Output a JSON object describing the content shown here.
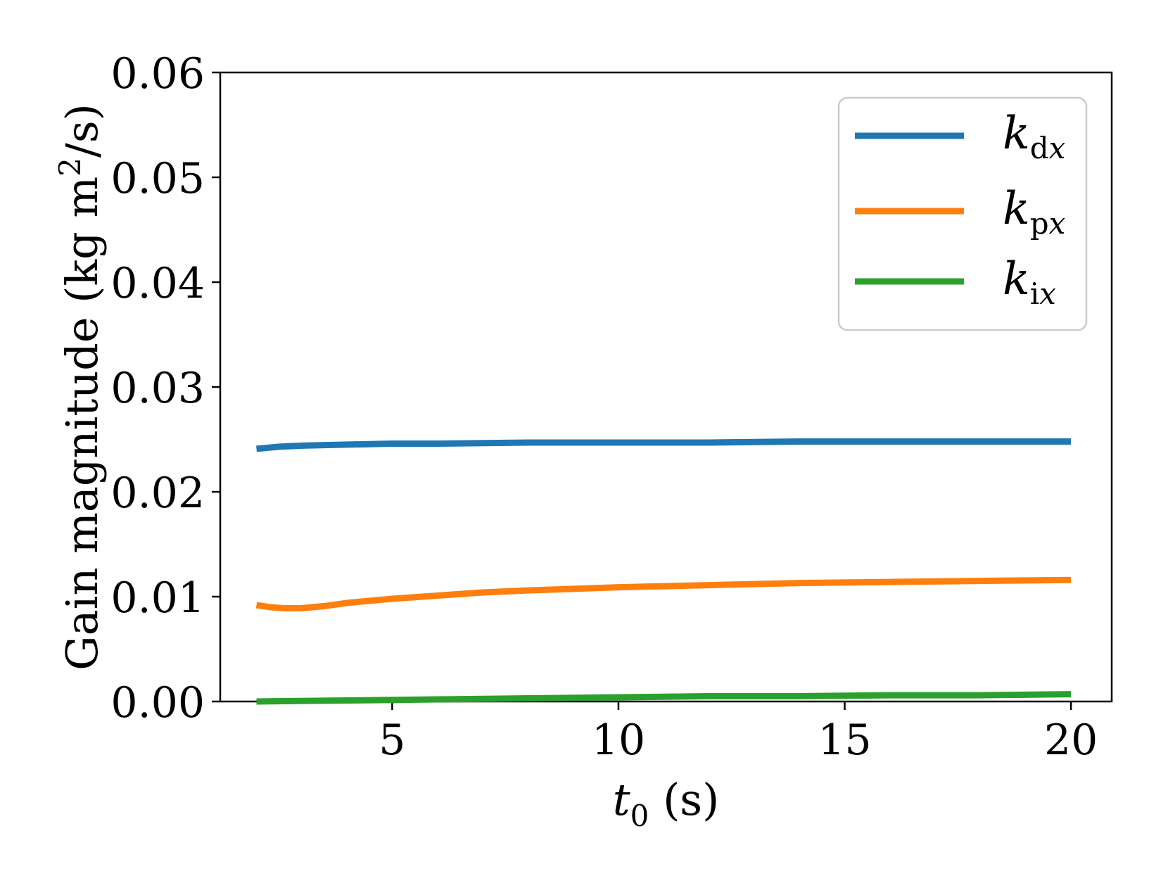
{
  "chart_data": {
    "type": "line",
    "x_label": {
      "main": "t",
      "sub": "0",
      "rest": " (s)"
    },
    "y_label": {
      "main": "Gain magnitude (kg m",
      "sup": "2",
      "rest": "/s)"
    },
    "xlim": [
      1.2,
      20.9
    ],
    "ylim": [
      0.0,
      0.06
    ],
    "x_ticks": [
      {
        "value": 5,
        "label": "5"
      },
      {
        "value": 10,
        "label": "10"
      },
      {
        "value": 15,
        "label": "15"
      },
      {
        "value": 20,
        "label": "20"
      }
    ],
    "y_ticks": [
      {
        "value": 0.0,
        "label": "0.00"
      },
      {
        "value": 0.01,
        "label": "0.01"
      },
      {
        "value": 0.02,
        "label": "0.02"
      },
      {
        "value": 0.03,
        "label": "0.03"
      },
      {
        "value": 0.04,
        "label": "0.04"
      },
      {
        "value": 0.05,
        "label": "0.05"
      },
      {
        "value": 0.06,
        "label": "0.06"
      }
    ],
    "grid": false,
    "legend_position": "top-right",
    "series": [
      {
        "key": "kdx",
        "name_main": "k",
        "name_sub_upright": "d",
        "name_sub_italic": "x",
        "color": "#1f77b4",
        "x": [
          2,
          2.5,
          3,
          4,
          5,
          6,
          8,
          10,
          12,
          14,
          16,
          18,
          20
        ],
        "y": [
          0.0241,
          0.0243,
          0.0244,
          0.0245,
          0.0246,
          0.0246,
          0.0247,
          0.0247,
          0.0247,
          0.0248,
          0.0248,
          0.0248,
          0.0248
        ]
      },
      {
        "key": "kpx",
        "name_main": "k",
        "name_sub_upright": "p",
        "name_sub_italic": "x",
        "color": "#ff7f0e",
        "x": [
          2,
          2.3,
          2.6,
          3,
          3.5,
          4,
          5,
          6,
          7,
          8,
          10,
          12,
          14,
          16,
          18,
          20
        ],
        "y": [
          0.0092,
          0.009,
          0.0089,
          0.0089,
          0.0091,
          0.0094,
          0.0098,
          0.0101,
          0.0104,
          0.0106,
          0.0109,
          0.0111,
          0.0113,
          0.0114,
          0.0115,
          0.0116
        ]
      },
      {
        "key": "kix",
        "name_main": "k",
        "name_sub_upright": "i",
        "name_sub_italic": "x",
        "color": "#2ca02c",
        "x": [
          2,
          4,
          6,
          8,
          10,
          12,
          14,
          16,
          18,
          20
        ],
        "y": [
          0.0,
          0.0001,
          0.0002,
          0.0003,
          0.0004,
          0.0005,
          0.0005,
          0.0006,
          0.0006,
          0.0007
        ]
      }
    ]
  }
}
